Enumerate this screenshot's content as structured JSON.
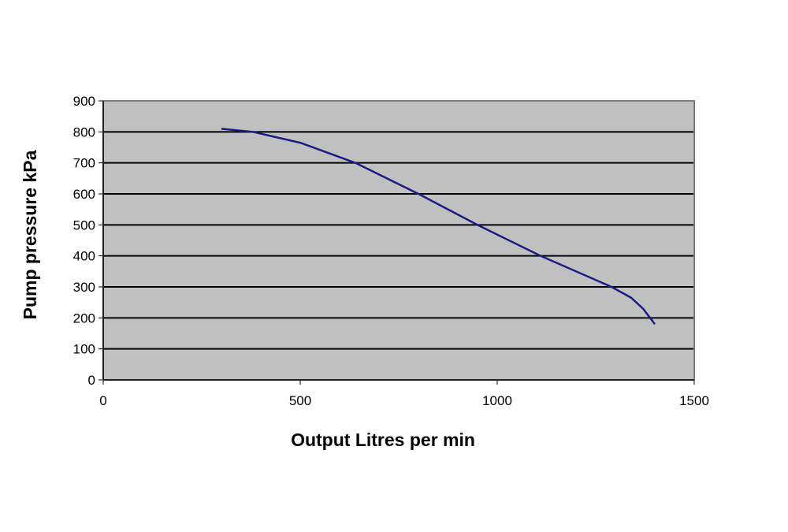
{
  "chart_data": {
    "type": "line",
    "x_label": "Output Litres per min",
    "y_label": "Pump pressure kPa",
    "x": [
      300,
      380,
      500,
      640,
      800,
      950,
      1110,
      1290,
      1340,
      1370,
      1400
    ],
    "series": [
      {
        "color": "#1c1c80",
        "values": [
          810,
          800,
          765,
          700,
          600,
          500,
          400,
          300,
          265,
          230,
          180
        ]
      }
    ],
    "xlim": [
      0,
      1500
    ],
    "xticks": [
      0,
      500,
      1000,
      1500
    ],
    "ylim": [
      0,
      900
    ],
    "yticks": [
      0,
      100,
      200,
      300,
      400,
      500,
      600,
      700,
      800,
      900
    ],
    "grid": true,
    "plot_background": "#c0c0c0"
  }
}
